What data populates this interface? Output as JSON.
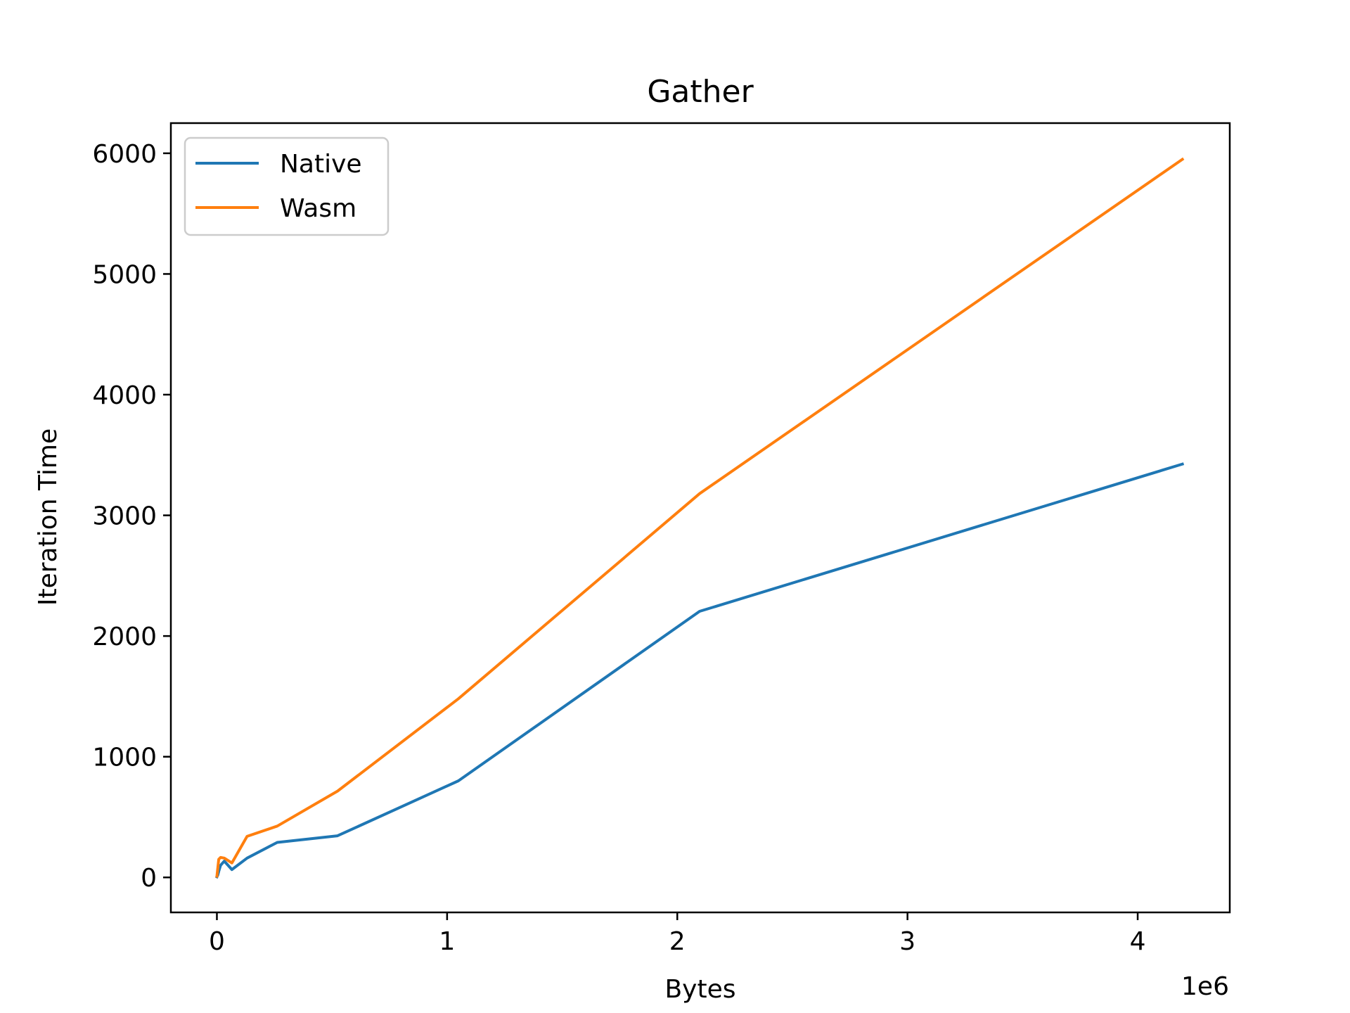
{
  "chart_data": {
    "type": "line",
    "title": "Gather",
    "xlabel": "Bytes",
    "ylabel": "Iteration Time",
    "x_offset_label": "1e6",
    "xlim": [
      -0.2,
      4.4
    ],
    "ylim": [
      -290,
      6250
    ],
    "x_ticks": [
      0,
      1,
      2,
      3,
      4
    ],
    "y_ticks": [
      0,
      1000,
      2000,
      3000,
      4000,
      5000,
      6000
    ],
    "grid": false,
    "legend_position": "upper-left",
    "series": [
      {
        "name": "Native",
        "color": "#1f77b4",
        "x": [
          0,
          0.004,
          0.008,
          0.016,
          0.032,
          0.065,
          0.131,
          0.262,
          0.524,
          1.049,
          2.097,
          4.194
        ],
        "y": [
          5,
          20,
          50,
          100,
          135,
          65,
          160,
          290,
          345,
          800,
          2205,
          3425
        ]
      },
      {
        "name": "Wasm",
        "color": "#ff7f0e",
        "x": [
          0,
          0.004,
          0.008,
          0.016,
          0.032,
          0.065,
          0.131,
          0.262,
          0.524,
          1.049,
          2.097,
          4.194
        ],
        "y": [
          10,
          80,
          150,
          165,
          160,
          120,
          340,
          425,
          715,
          1480,
          3180,
          5950
        ]
      }
    ]
  }
}
